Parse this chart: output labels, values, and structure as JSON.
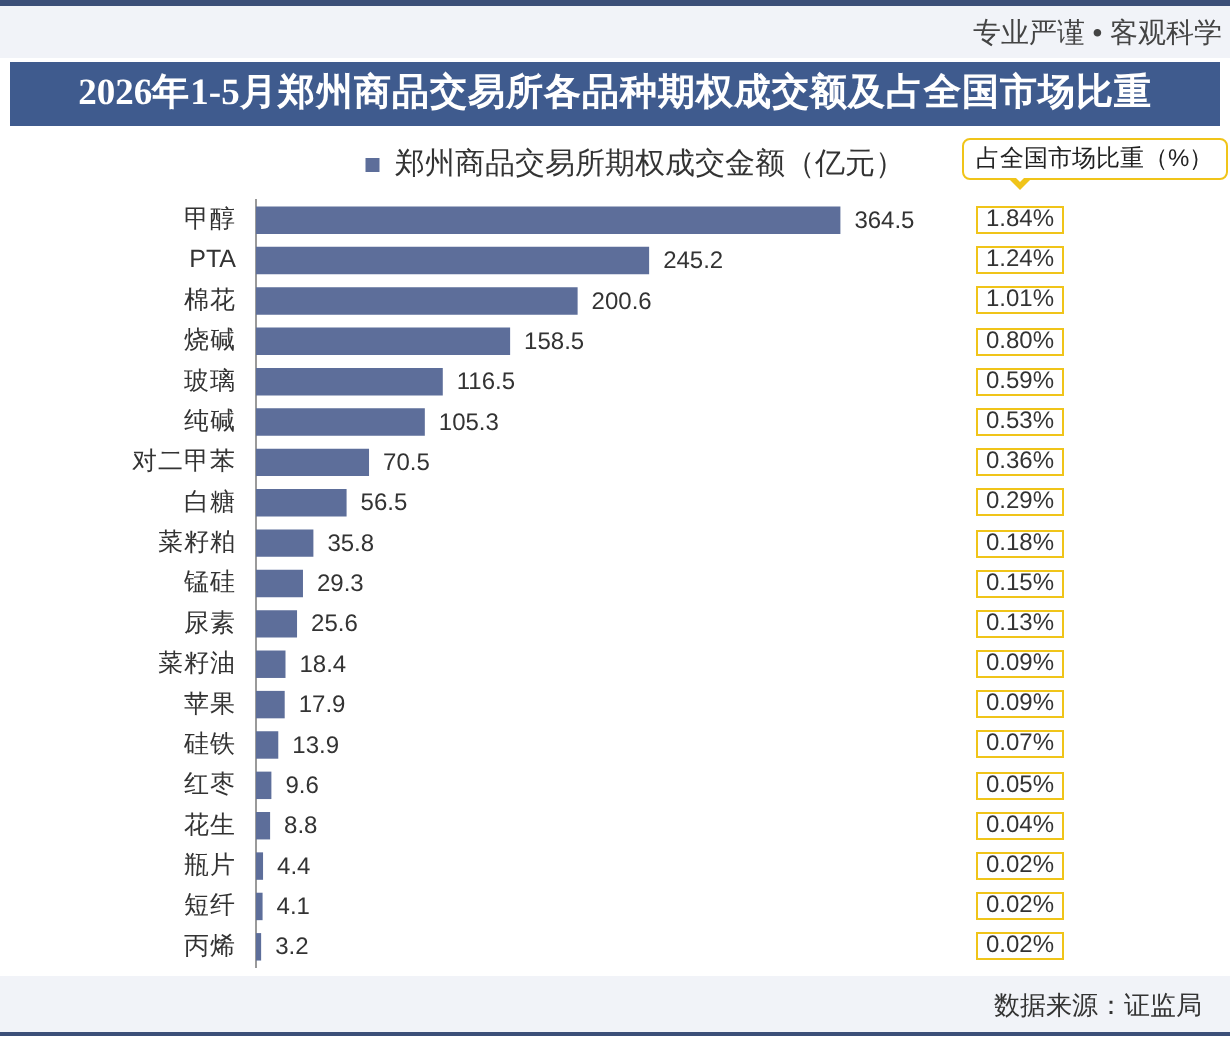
{
  "chart_data": [
    {
      "type": "bar",
      "orientation": "horizontal",
      "title": "2026年1-5月郑州商品交易所各品种期权成交额及占全国市场比重",
      "annotations": [
        "专业严谨 • 客观科学",
        "数据来源：证监局"
      ],
      "categories": [
        "甲醇",
        "PTA",
        "棉花",
        "烧碱",
        "玻璃",
        "纯碱",
        "对二甲苯",
        "白糖",
        "菜籽粕",
        "锰硅",
        "尿素",
        "菜籽油",
        "苹果",
        "硅铁",
        "红枣",
        "花生",
        "瓶片",
        "短纤",
        "丙烯"
      ],
      "series": [
        {
          "name": "郑州商品交易所期权成交金额（亿元）",
          "color": "#5d6e9a",
          "values": [
            364.5,
            245.2,
            200.6,
            158.5,
            116.5,
            105.3,
            70.5,
            56.5,
            35.8,
            29.3,
            25.6,
            18.4,
            17.9,
            13.9,
            9.6,
            8.8,
            4.4,
            4.1,
            3.2
          ]
        }
      ],
      "data_labels": true,
      "legend": "top",
      "tick_labels": "y"
    },
    {
      "type": "other",
      "title": "占全国市场比重（%）",
      "color": "#f0c419",
      "values": [
        1.84,
        1.24,
        1.01,
        0.8,
        0.59,
        0.53,
        0.36,
        0.29,
        0.18,
        0.15,
        0.13,
        0.09,
        0.09,
        0.07,
        0.05,
        0.04,
        0.02,
        0.02,
        0.02
      ],
      "value_labels": [
        "1.84%",
        "1.24%",
        "1.01%",
        "0.80%",
        "0.59%",
        "0.53%",
        "0.36%",
        "0.29%",
        "0.18%",
        "0.15%",
        "0.13%",
        "0.09%",
        "0.09%",
        "0.07%",
        "0.05%",
        "0.04%",
        "0.02%",
        "0.02%",
        "0.02%"
      ]
    }
  ]
}
